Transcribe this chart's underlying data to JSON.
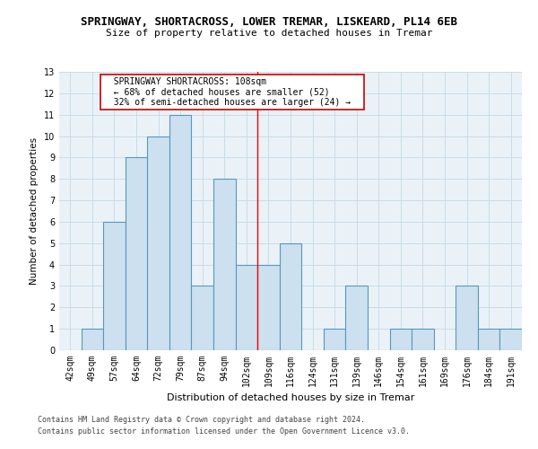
{
  "title": "SPRINGWAY, SHORTACROSS, LOWER TREMAR, LISKEARD, PL14 6EB",
  "subtitle": "Size of property relative to detached houses in Tremar",
  "xlabel": "Distribution of detached houses by size in Tremar",
  "ylabel": "Number of detached properties",
  "categories": [
    "42sqm",
    "49sqm",
    "57sqm",
    "64sqm",
    "72sqm",
    "79sqm",
    "87sqm",
    "94sqm",
    "102sqm",
    "109sqm",
    "116sqm",
    "124sqm",
    "131sqm",
    "139sqm",
    "146sqm",
    "154sqm",
    "161sqm",
    "169sqm",
    "176sqm",
    "184sqm",
    "191sqm"
  ],
  "values": [
    0,
    1,
    6,
    9,
    10,
    11,
    3,
    8,
    4,
    4,
    5,
    0,
    1,
    3,
    0,
    1,
    1,
    0,
    3,
    1,
    1
  ],
  "bar_color": "#cce0f0",
  "bar_edge_color": "#5599bb",
  "bar_linewidth": 0.8,
  "red_line_x": 8.5,
  "annotation_text": "  SPRINGWAY SHORTACROSS: 108sqm  \n  ← 68% of detached houses are smaller (52)  \n  32% of semi-detached houses are larger (24) →  ",
  "annotation_box_color": "#ffffff",
  "annotation_box_edge": "#cc0000",
  "ylim": [
    0,
    13
  ],
  "yticks": [
    0,
    1,
    2,
    3,
    4,
    5,
    6,
    7,
    8,
    9,
    10,
    11,
    12,
    13
  ],
  "grid_color": "#c8dce8",
  "background_color": "#eaf2f8",
  "footer1": "Contains HM Land Registry data © Crown copyright and database right 2024.",
  "footer2": "Contains public sector information licensed under the Open Government Licence v3.0.",
  "title_fontsize": 9,
  "subtitle_fontsize": 8,
  "xlabel_fontsize": 8,
  "ylabel_fontsize": 7.5,
  "tick_fontsize": 7,
  "annotation_fontsize": 7,
  "footer_fontsize": 6
}
